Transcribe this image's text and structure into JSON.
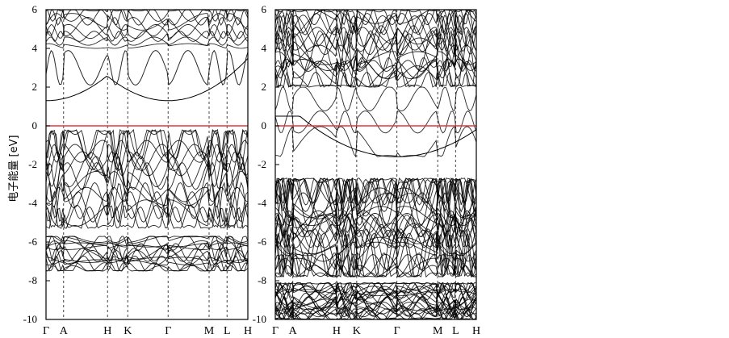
{
  "figure": {
    "ylabel": "电子能量 [eV]"
  },
  "chart_data": [
    {
      "type": "line",
      "panel": "left",
      "title": "",
      "xlabel": "",
      "ylabel": "电子能量 [eV]",
      "ylim": [
        -10,
        6
      ],
      "yticks": [
        6,
        4,
        2,
        0,
        -2,
        -4,
        -6,
        -8,
        -10
      ],
      "high_symmetry_points": [
        {
          "label": "Γ",
          "k": 0.0
        },
        {
          "label": "A",
          "k": 0.087
        },
        {
          "label": "H",
          "k": 0.305
        },
        {
          "label": "K",
          "k": 0.405
        },
        {
          "label": "Γ",
          "k": 0.605
        },
        {
          "label": "M",
          "k": 0.808
        },
        {
          "label": "L",
          "k": 0.897
        },
        {
          "label": "H",
          "k": 1.0
        }
      ],
      "fermi_level": 0,
      "fermi_color": "#e8343a",
      "band_color": "#000000",
      "band_groups": [
        {
          "name": "",
          "count": 8,
          "range": [
            4.0,
            6.0
          ]
        },
        {
          "name": "",
          "count": 1,
          "range": [
            1.3,
            4.7
          ]
        },
        {
          "name": "",
          "count": 16,
          "range": [
            -5.3,
            -0.2
          ]
        },
        {
          "name": "",
          "count": 14,
          "range": [
            -7.5,
            -5.7
          ]
        }
      ],
      "key_values": {
        "conduction_band_minimum": 1.3,
        "valence_band_maximum": -0.2
      }
    },
    {
      "type": "line",
      "panel": "right",
      "title": "",
      "xlabel": "",
      "ylabel": "",
      "ylim": [
        -10,
        6
      ],
      "yticks": [
        6,
        4,
        2,
        0,
        -2,
        -4,
        -6,
        -8,
        -10
      ],
      "high_symmetry_points": [
        {
          "label": "Γ",
          "k": 0.0
        },
        {
          "label": "A",
          "k": 0.087
        },
        {
          "label": "H",
          "k": 0.305
        },
        {
          "label": "K",
          "k": 0.405
        },
        {
          "label": "Γ",
          "k": 0.605
        },
        {
          "label": "M",
          "k": 0.808
        },
        {
          "label": "L",
          "k": 0.897
        },
        {
          "label": "H",
          "k": 1.0
        }
      ],
      "fermi_level": 0,
      "fermi_color": "#e8343a",
      "band_color": "#000000",
      "band_groups": [
        {
          "name": "",
          "count": 20,
          "range": [
            2.0,
            6.0
          ]
        },
        {
          "name": "",
          "count": 3,
          "range": [
            -1.6,
            2.0
          ]
        },
        {
          "name": "",
          "count": 30,
          "range": [
            -7.8,
            -2.7
          ]
        },
        {
          "name": "",
          "count": 24,
          "range": [
            -10.0,
            -8.1
          ]
        }
      ],
      "key_values": {
        "impurity_band_minimum": -1.6,
        "impurity_band_maximum": 0.5,
        "valence_band_maximum": -2.7
      }
    }
  ]
}
